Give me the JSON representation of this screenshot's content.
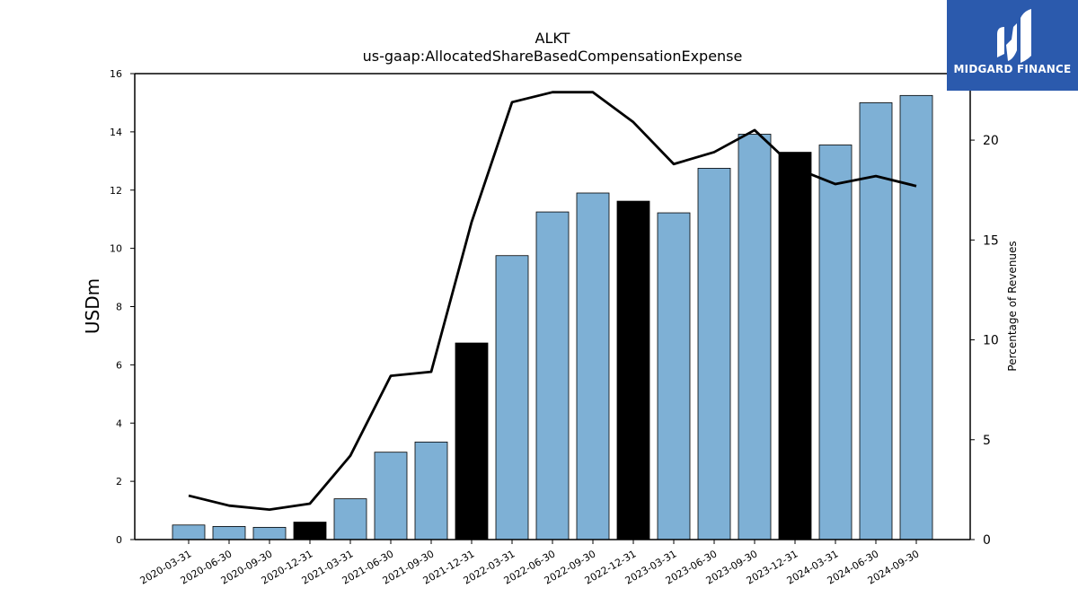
{
  "brand": {
    "name": "MIDGARD FINANCE",
    "bg_color": "#2b5aad"
  },
  "chart_data": {
    "type": "bar",
    "title": "ALKT",
    "subtitle": "us-gaap:AllocatedShareBasedCompensationExpense",
    "ylabel": "USDm",
    "y2label": "Percentage of Revenues",
    "ylim": [
      0,
      16
    ],
    "y2lim": [
      0,
      23.33
    ],
    "yticks": [
      0,
      2,
      4,
      6,
      8,
      10,
      12,
      14,
      16
    ],
    "y2ticks": [
      0,
      5,
      10,
      15,
      20
    ],
    "categories": [
      "2020-03-31",
      "2020-06-30",
      "2020-09-30",
      "2020-12-31",
      "2021-03-31",
      "2021-06-30",
      "2021-09-30",
      "2021-12-31",
      "2022-03-31",
      "2022-06-30",
      "2022-09-30",
      "2022-12-31",
      "2023-03-31",
      "2023-06-30",
      "2023-09-30",
      "2023-12-31",
      "2024-03-31",
      "2024-06-30",
      "2024-09-30"
    ],
    "series": [
      {
        "type": "bar",
        "axis": "left",
        "values": [
          0.5,
          0.45,
          0.42,
          0.6,
          1.4,
          3.0,
          3.35,
          6.75,
          9.75,
          11.25,
          11.9,
          11.62,
          11.22,
          12.75,
          13.92,
          13.3,
          13.55,
          15.0,
          15.25
        ],
        "colors": [
          "#7eb0d5",
          "#7eb0d5",
          "#7eb0d5",
          "#000000",
          "#7eb0d5",
          "#7eb0d5",
          "#7eb0d5",
          "#000000",
          "#7eb0d5",
          "#7eb0d5",
          "#7eb0d5",
          "#000000",
          "#7eb0d5",
          "#7eb0d5",
          "#7eb0d5",
          "#000000",
          "#7eb0d5",
          "#7eb0d5",
          "#7eb0d5"
        ]
      },
      {
        "type": "line",
        "axis": "right",
        "color": "#000000",
        "values": [
          2.2,
          1.7,
          1.5,
          1.8,
          4.2,
          8.2,
          8.4,
          15.9,
          21.9,
          22.4,
          22.4,
          20.9,
          18.8,
          19.4,
          20.5,
          18.6,
          17.8,
          18.2,
          17.7
        ]
      }
    ],
    "grid": false,
    "legend": "none"
  }
}
